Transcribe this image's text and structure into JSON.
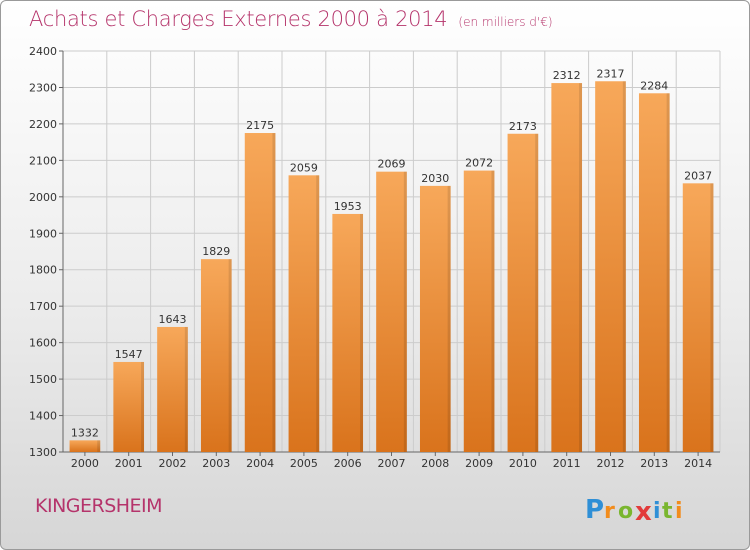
{
  "header": {
    "title": "Achats et Charges Externes 2000 à 2014",
    "unit": "(en milliers d'€)"
  },
  "footer": {
    "city": "KINGERSHEIM",
    "logo_text": "Proxiti"
  },
  "colors": {
    "bar_top": "#f7a85a",
    "bar_bottom": "#d9731c",
    "accent": "#b5346b",
    "grid": "#cccccc"
  },
  "chart_data": {
    "type": "bar",
    "title": "Achats et Charges Externes 2000 à 2014",
    "subtitle": "(en milliers d'€)",
    "categories": [
      "2000",
      "2001",
      "2002",
      "2003",
      "2004",
      "2005",
      "2006",
      "2007",
      "2008",
      "2009",
      "2010",
      "2011",
      "2012",
      "2013",
      "2014"
    ],
    "values": [
      1332,
      1547,
      1643,
      1829,
      2175,
      2059,
      1953,
      2069,
      2030,
      2072,
      2173,
      2312,
      2317,
      2284,
      2037
    ],
    "ylim": [
      1300,
      2400
    ],
    "yticks": [
      1300,
      1400,
      1500,
      1600,
      1700,
      1800,
      1900,
      2000,
      2100,
      2200,
      2300,
      2400
    ],
    "grid": true,
    "data_labels": true
  }
}
